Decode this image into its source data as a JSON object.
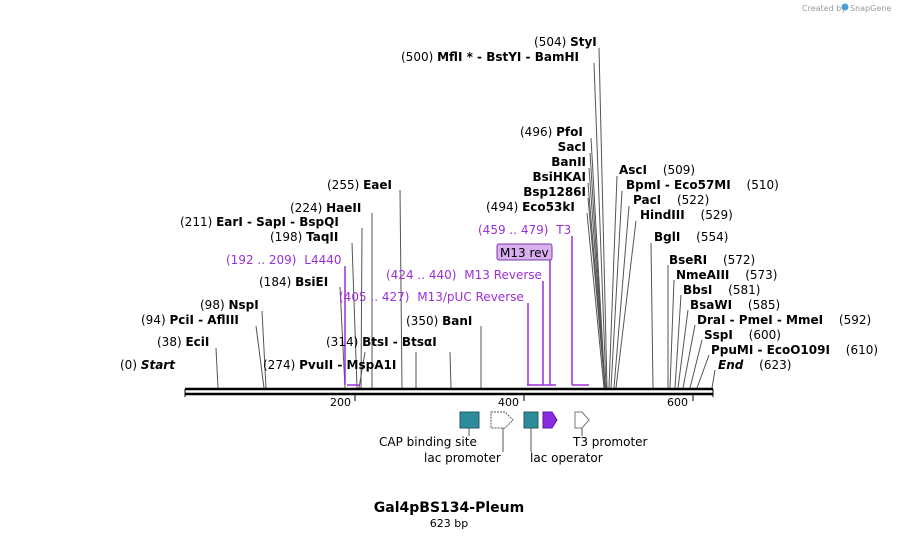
{
  "credit": {
    "text": "Created by",
    "brand": "SnapGene"
  },
  "title": "Gal4pBS134-Pleum",
  "subtitle": "623 bp",
  "ticks": [
    "200",
    "400",
    "600"
  ],
  "sites": [
    {
      "pos": "(504)",
      "name": "StyI"
    },
    {
      "pos": "(500)",
      "name": "MflI * - BstYI - BamHI"
    },
    {
      "pos": "(496)",
      "name": "PfoI"
    },
    {
      "pos": "",
      "name": "SacI"
    },
    {
      "pos": "",
      "name": "BanII"
    },
    {
      "pos": "",
      "name": "BsiHKAI"
    },
    {
      "pos": "",
      "name": "Bsp1286I"
    },
    {
      "pos": "(494)",
      "name": "Eco53kI"
    },
    {
      "pos": "(255)",
      "name": "EaeI"
    },
    {
      "pos": "(224)",
      "name": "HaeII"
    },
    {
      "pos": "(211)",
      "name": "EarI - SapI - BspQI"
    },
    {
      "pos": "(198)",
      "name": "TaqII"
    },
    {
      "pos": "(184)",
      "name": "BsiEI"
    },
    {
      "pos": "(98)",
      "name": "NspI"
    },
    {
      "pos": "(94)",
      "name": "PciI - AflIII"
    },
    {
      "pos": "(38)",
      "name": "EciI"
    },
    {
      "pos": "(0)",
      "name": "Start"
    },
    {
      "pos": "(274)",
      "name": "PvuII - MspA1I"
    },
    {
      "pos": "(314)",
      "name": "BtsI - BtsαI"
    },
    {
      "pos": "(350)",
      "name": "BanI"
    },
    {
      "pos": "(509)",
      "name": "AscI"
    },
    {
      "pos": "(510)",
      "name": "BpmI - Eco57MI"
    },
    {
      "pos": "(522)",
      "name": "PacI"
    },
    {
      "pos": "(529)",
      "name": "HindIII"
    },
    {
      "pos": "(554)",
      "name": "BglI"
    },
    {
      "pos": "(572)",
      "name": "BseRI"
    },
    {
      "pos": "(573)",
      "name": "NmeAIII"
    },
    {
      "pos": "(581)",
      "name": "BbsI"
    },
    {
      "pos": "(585)",
      "name": "BsaWI"
    },
    {
      "pos": "(592)",
      "name": "DraI - PmeI - MmeI"
    },
    {
      "pos": "(600)",
      "name": "SspI"
    },
    {
      "pos": "(610)",
      "name": "PpuMI - EcoO109I"
    },
    {
      "pos": "(623)",
      "name": "End"
    }
  ],
  "primers": [
    {
      "range": "(459 .. 479)",
      "name": "T3"
    },
    {
      "range": "(192 .. 209)",
      "name": "L4440"
    },
    {
      "range": "(424 .. 440)",
      "name": "M13 Reverse"
    },
    {
      "range": "(405 .. 427)",
      "name": "M13/pUC Reverse"
    }
  ],
  "badge": "M13 rev",
  "features": [
    {
      "name": "CAP binding site"
    },
    {
      "name": "lac promoter"
    },
    {
      "name": "lac operator"
    },
    {
      "name": "T3 promoter"
    }
  ],
  "colors": {
    "primer": "#9b30d9",
    "feature_teal": "#2e8b9a",
    "feature_purple": "#8a2be2"
  }
}
